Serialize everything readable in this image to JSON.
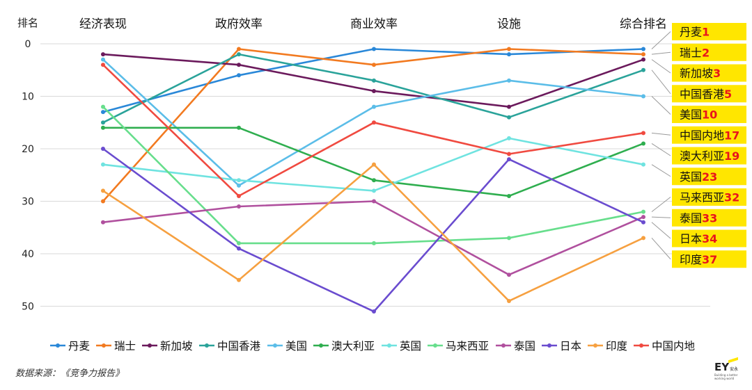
{
  "chart_data": {
    "type": "line",
    "ylabel": "排名",
    "categories": [
      "经济表现",
      "政府效率",
      "商业效率",
      "设施",
      "综合排名"
    ],
    "yticks": [
      0,
      10,
      20,
      30,
      40,
      50
    ],
    "ylim": [
      0,
      50
    ],
    "y_inverted": true,
    "legend_position": "bottom",
    "series": [
      {
        "name": "丹麦",
        "color": "#2a88d8",
        "values": [
          13,
          6,
          1,
          2,
          1
        ]
      },
      {
        "name": "瑞士",
        "color": "#f27a20",
        "values": [
          30,
          1,
          4,
          1,
          2
        ]
      },
      {
        "name": "新加坡",
        "color": "#6b1a5c",
        "values": [
          2,
          4,
          9,
          12,
          3
        ]
      },
      {
        "name": "中国香港",
        "color": "#2aa39a",
        "values": [
          15,
          2,
          7,
          14,
          5
        ]
      },
      {
        "name": "美国",
        "color": "#5bbde8",
        "values": [
          3,
          27,
          12,
          7,
          10
        ]
      },
      {
        "name": "澳大利亚",
        "color": "#2fae4f",
        "values": [
          16,
          16,
          26,
          29,
          19
        ]
      },
      {
        "name": "英国",
        "color": "#6fe3e0",
        "values": [
          23,
          26,
          28,
          18,
          23
        ]
      },
      {
        "name": "马来西亚",
        "color": "#67de8c",
        "values": [
          12,
          38,
          38,
          37,
          32
        ]
      },
      {
        "name": "泰国",
        "color": "#b0509e",
        "values": [
          34,
          31,
          30,
          44,
          33
        ]
      },
      {
        "name": "日本",
        "color": "#6a4ccf",
        "values": [
          20,
          39,
          51,
          22,
          34
        ]
      },
      {
        "name": "印度",
        "color": "#f6a040",
        "values": [
          28,
          45,
          23,
          49,
          37
        ]
      },
      {
        "name": "中国内地",
        "color": "#f04a40",
        "values": [
          4,
          29,
          15,
          21,
          17
        ]
      }
    ],
    "annotations": [
      {
        "name": "丹麦",
        "rank": "1"
      },
      {
        "name": "瑞士",
        "rank": "2"
      },
      {
        "name": "新加坡",
        "rank": "3"
      },
      {
        "name": "中国香港",
        "rank": "5"
      },
      {
        "name": "美国",
        "rank": "10"
      },
      {
        "name": "中国内地",
        "rank": "17"
      },
      {
        "name": "澳大利亚",
        "rank": "19"
      },
      {
        "name": "英国",
        "rank": "23"
      },
      {
        "name": "马来西亚",
        "rank": "32"
      },
      {
        "name": "泰国",
        "rank": "33"
      },
      {
        "name": "日本",
        "rank": "34"
      },
      {
        "name": "印度",
        "rank": "37"
      }
    ],
    "annotation_fill": "#ffe600",
    "annotation_rank_color": "#e8141c"
  },
  "source": "数据来源：《竞争力报告》",
  "logo": {
    "mark": "EY",
    "cn": "安永",
    "tagline": "Building a better working world"
  }
}
